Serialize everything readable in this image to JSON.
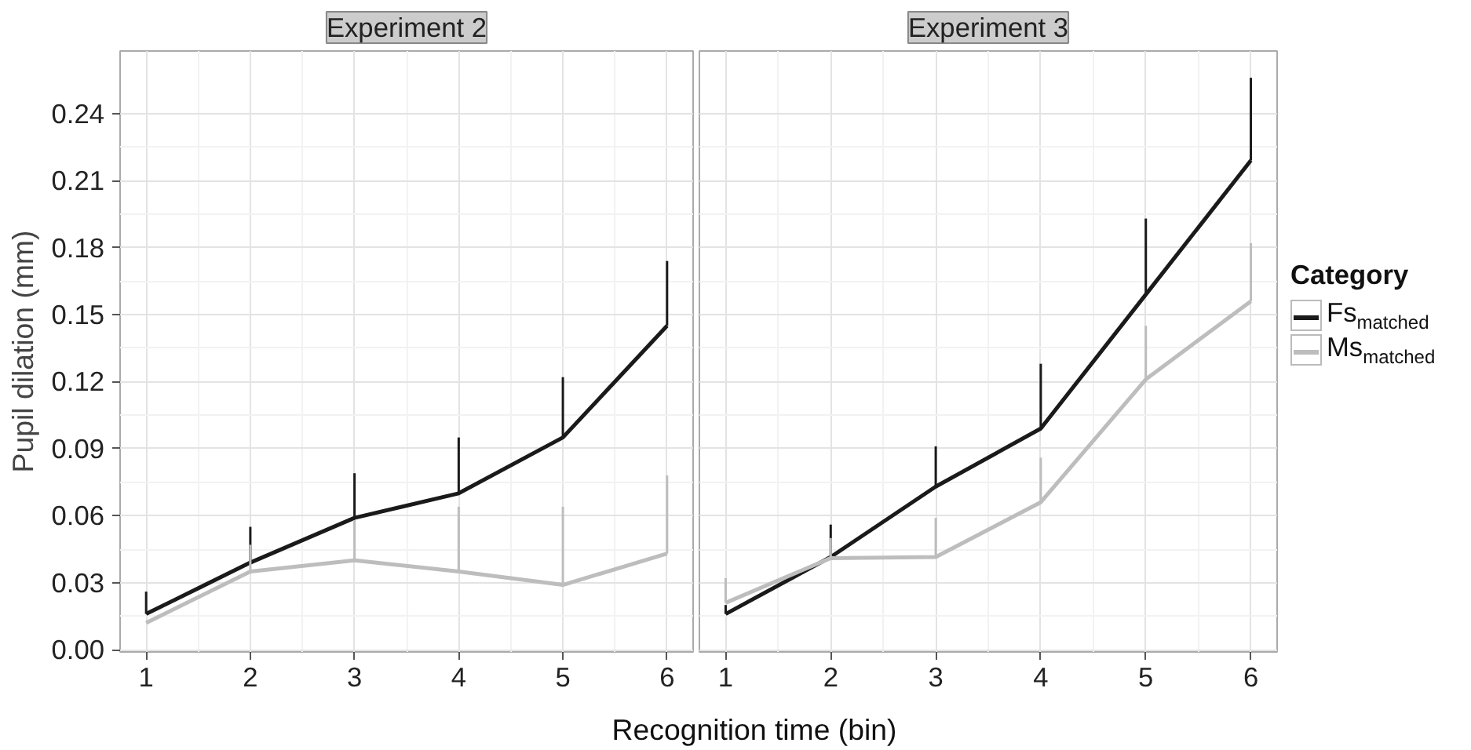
{
  "chart_data": [
    {
      "type": "line",
      "title": "Experiment 2",
      "ylabel": "Pupil dilation (mm)",
      "xlabel": "Recognition time (bin)",
      "x": [
        1,
        2,
        3,
        4,
        5,
        6
      ],
      "xlim": [
        0.75,
        6.25
      ],
      "xticks": [
        1,
        2,
        3,
        4,
        5,
        6
      ],
      "ylim": [
        -0.001,
        0.268
      ],
      "yticks": [
        {
          "value": 0,
          "label": "0.00"
        },
        {
          "value": 0.03,
          "label": "0.03"
        },
        {
          "value": 0.06,
          "label": "0.06"
        },
        {
          "value": 0.09,
          "label": "0.09"
        },
        {
          "value": 0.12,
          "label": "0.12"
        },
        {
          "value": 0.15,
          "label": "0.15"
        },
        {
          "value": 0.18,
          "label": "0.18"
        },
        {
          "value": 0.21,
          "label": "0.21"
        },
        {
          "value": 0.24,
          "label": "0.24"
        }
      ],
      "grid": true,
      "legend": "right",
      "legend_title": "Category",
      "series": [
        {
          "name": "Fs$_{matched}$",
          "color": "#1a1a1a",
          "values": [
            0.016,
            0.039,
            0.059,
            0.07,
            0.095,
            0.145
          ],
          "errors": [
            [
              0.016,
              0.026
            ],
            [
              0.039,
              0.055
            ],
            [
              0.059,
              0.079
            ],
            [
              0.07,
              0.095
            ],
            [
              0.095,
              0.122
            ],
            [
              0.145,
              0.174
            ]
          ]
        },
        {
          "name": "Ms$_{matched}$",
          "color": "#bdbdbd",
          "values": [
            0.012,
            0.035,
            0.04,
            0.035,
            0.029,
            0.043
          ],
          "errors": [
            null,
            [
              0.035,
              0.047
            ],
            [
              0.04,
              0.058
            ],
            [
              0.035,
              0.064
            ],
            [
              0.029,
              0.064
            ],
            [
              0.043,
              0.078
            ]
          ]
        }
      ]
    },
    {
      "type": "line",
      "title": "Experiment 3",
      "x": [
        1,
        2,
        3,
        4,
        5,
        6
      ],
      "xlim": [
        0.75,
        6.25
      ],
      "xticks": [
        1,
        2,
        3,
        4,
        5,
        6
      ],
      "ylim": [
        -0.001,
        0.268
      ],
      "yticks": [
        0,
        0.03,
        0.06,
        0.09,
        0.12,
        0.15,
        0.18,
        0.21,
        0.24
      ],
      "grid": true,
      "tick_labels": "x",
      "series": [
        {
          "color": "#1a1a1a",
          "values": [
            0.016,
            0.0415,
            0.073,
            0.099,
            0.159,
            0.219
          ],
          "errors": [
            [
              0.016,
              0.02
            ],
            [
              0.0415,
              0.056
            ],
            [
              0.073,
              0.091
            ],
            [
              0.099,
              0.128
            ],
            [
              0.159,
              0.193
            ],
            [
              0.219,
              0.256
            ]
          ]
        },
        {
          "color": "#bdbdbd",
          "values": [
            0.021,
            0.041,
            0.0415,
            0.066,
            0.121,
            0.156
          ],
          "errors": [
            [
              0.021,
              0.032
            ],
            [
              0.041,
              0.05
            ],
            [
              0.0415,
              0.059
            ],
            [
              0.066,
              0.086
            ],
            [
              0.121,
              0.145
            ],
            [
              0.156,
              0.182
            ]
          ]
        }
      ]
    }
  ]
}
